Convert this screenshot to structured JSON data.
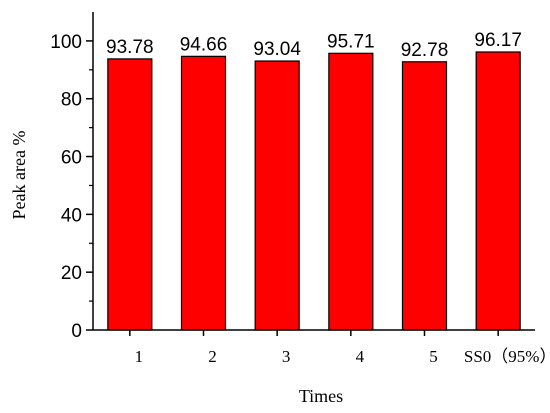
{
  "chart_data": {
    "type": "bar",
    "categories": [
      "1",
      "2",
      "3",
      "4",
      "5",
      "SS0（95%）"
    ],
    "values": [
      93.78,
      94.66,
      93.04,
      95.71,
      92.78,
      96.17
    ],
    "value_labels": [
      "93.78",
      "94.66",
      "93.04",
      "95.71",
      "92.78",
      "96.17"
    ],
    "xlabel": "Times",
    "ylabel": "Peak area %",
    "ylim": [
      0,
      110
    ],
    "yticks": [
      0,
      20,
      40,
      60,
      80,
      100
    ],
    "ytick_labels": [
      "0",
      "20",
      "40",
      "60",
      "80",
      "100"
    ],
    "grid": false,
    "bar_color": "#ff0000",
    "bar_edge_color": "#000000"
  }
}
